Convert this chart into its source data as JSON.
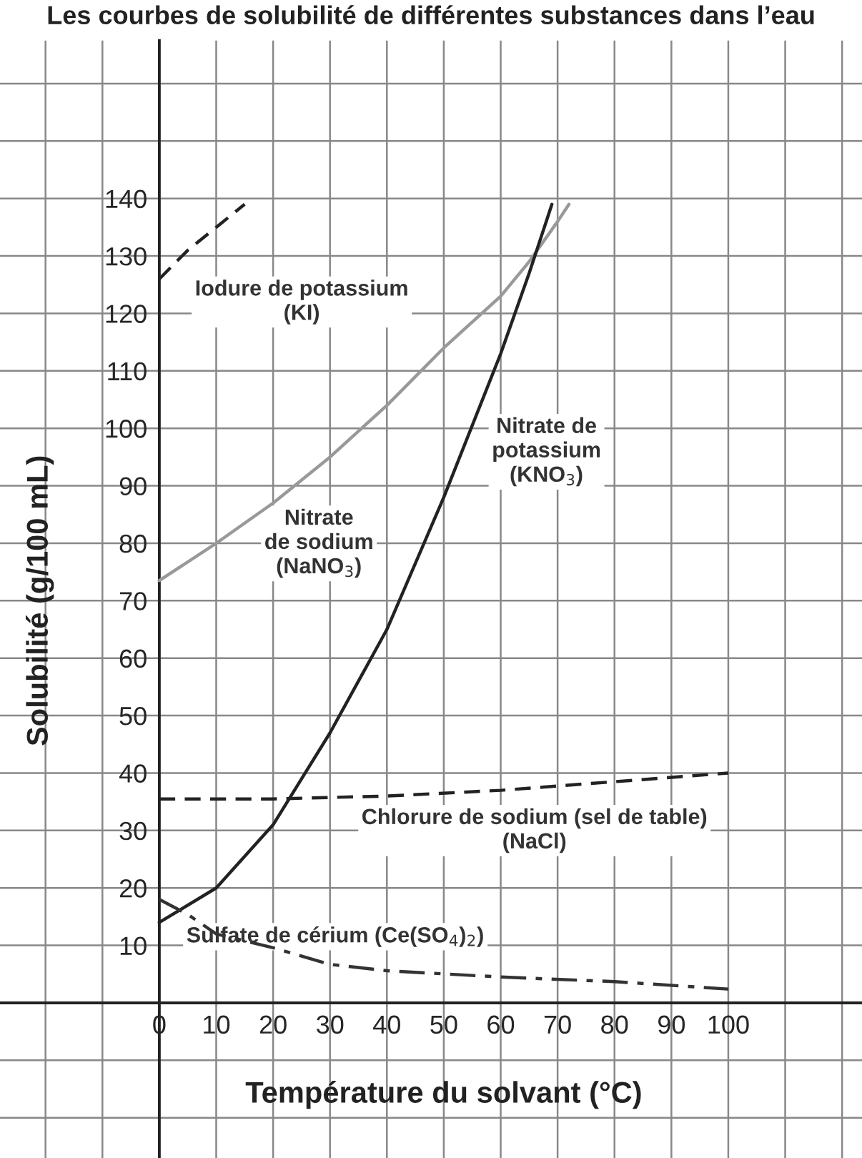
{
  "chart_data": {
    "type": "line",
    "title": "Les courbes de solubilité de différentes substances dans l’eau",
    "xlabel": "Température du solvant (°C)",
    "ylabel": "Solubilité (g/100 mL)",
    "xlim": [
      -28,
      123.5
    ],
    "ylim": [
      -27,
      167.5
    ],
    "xticks": [
      {
        "value": -20,
        "label": null
      },
      {
        "value": -10,
        "label": null
      },
      0,
      10,
      20,
      30,
      40,
      50,
      60,
      70,
      80,
      90,
      100,
      {
        "value": 110,
        "label": null
      },
      {
        "value": 120,
        "label": null
      }
    ],
    "yticks": [
      {
        "value": -20,
        "label": null
      },
      {
        "value": -10,
        "label": null
      },
      {
        "value": 0,
        "label": null
      },
      10,
      20,
      30,
      40,
      50,
      60,
      70,
      80,
      90,
      100,
      110,
      120,
      130,
      140,
      {
        "value": 150,
        "label": null
      },
      {
        "value": 160,
        "label": null
      }
    ],
    "grid": true,
    "legend": false,
    "series": [
      {
        "name": "Iodure de potassium\n(KI)",
        "color": "#222222",
        "line_style": "dashed",
        "x": [
          0,
          5,
          10,
          15
        ],
        "values": [
          126,
          131,
          135,
          139
        ]
      },
      {
        "name": "Nitrate\nde sodium\n(NaNO$_{3}$)",
        "color": "#999999",
        "line_style": "solid",
        "x": [
          0,
          10,
          20,
          30,
          40,
          50,
          60,
          65,
          70,
          72
        ],
        "values": [
          73.5,
          80,
          87,
          95,
          104,
          114,
          123,
          129,
          136,
          139
        ]
      },
      {
        "name": "Nitrate de\npotassium\n(KNO$_{3}$)",
        "color": "#222222",
        "line_style": "solid",
        "x": [
          0,
          10,
          20,
          30,
          40,
          50,
          60,
          65,
          69
        ],
        "values": [
          14,
          20,
          31,
          47,
          65,
          88,
          113,
          127,
          139
        ]
      },
      {
        "name": "Chlorure de sodium (sel de table)\n(NaCl)",
        "color": "#222222",
        "line_style": "dashed",
        "x": [
          0,
          20,
          40,
          60,
          80,
          100
        ],
        "values": [
          35.5,
          35.5,
          36,
          37,
          38.5,
          40
        ]
      },
      {
        "name": "Sulfate de cérium (Ce(SO$_{4}$)$_{2}$)",
        "color": "#333333",
        "line_style": "dashdot",
        "x": [
          0,
          5,
          10,
          20,
          30,
          40,
          60,
          80,
          100
        ],
        "values": [
          18,
          15.4,
          12,
          9.6,
          6.7,
          5.6,
          4.5,
          3.7,
          2.4
        ]
      }
    ]
  }
}
